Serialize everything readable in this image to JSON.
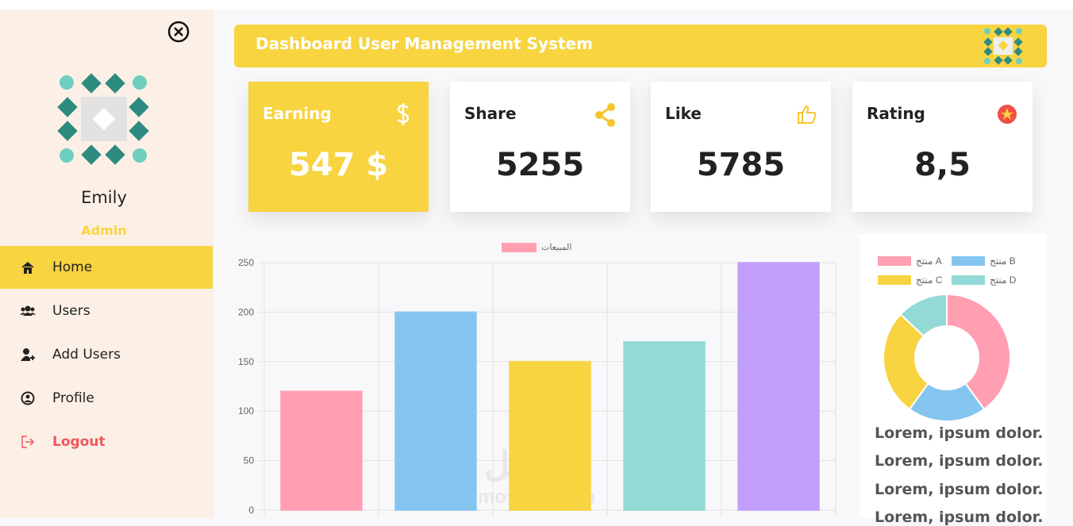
{
  "sidebar": {
    "user": {
      "name": "Emily",
      "role": "Admin"
    },
    "menu": [
      "Home",
      "Users",
      "Add Users",
      "Profile",
      "Logout"
    ]
  },
  "header": {
    "title": "Dashboard User Management System"
  },
  "cards": [
    {
      "label": "Earning",
      "value": "547 $"
    },
    {
      "label": "Share",
      "value": "5255"
    },
    {
      "label": "Like",
      "value": "5785"
    },
    {
      "label": "Rating",
      "value": "8,5"
    }
  ],
  "chart_data": [
    {
      "type": "bar",
      "categories": [
        null,
        null,
        null,
        null,
        null
      ],
      "series": [
        {
          "name": "المبيعات",
          "color": "#ff9fb1",
          "colors": [
            "#ff9fb1",
            "#84c5f0",
            "#f7d440",
            "#93d9d6",
            "#c19ffb"
          ],
          "values": [
            120,
            200,
            150,
            170,
            250
          ]
        }
      ],
      "ylim": [
        0,
        250
      ],
      "yticks": [
        0,
        50,
        100,
        150,
        200,
        250
      ],
      "grid": true,
      "legend": "top"
    },
    {
      "type": "doughnut",
      "categories": [
        "منتج A",
        "منتج B",
        "منتج C",
        "منتج D"
      ],
      "values": [
        40,
        20,
        27,
        13
      ],
      "colors": [
        "#ff9fb1",
        "#84c5f0",
        "#f7d440",
        "#93d9d6"
      ],
      "legend": "top"
    }
  ],
  "notes": [
    "Lorem, ipsum dolor.",
    "Lorem, ipsum dolor.",
    "Lorem, ipsum dolor.",
    "Lorem, ipsum dolor."
  ],
  "watermark": {
    "arabic": "مستقل",
    "latin": "mostaql.com"
  }
}
